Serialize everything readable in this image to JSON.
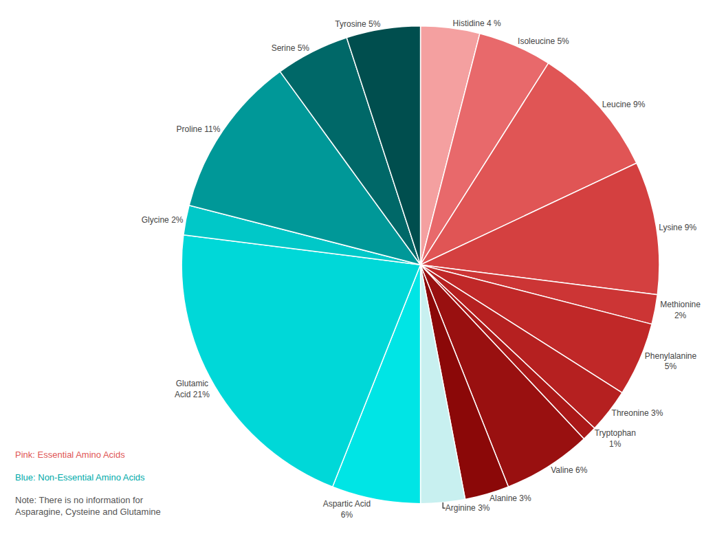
{
  "chart_data": {
    "type": "pie",
    "categories": [
      "Histidine 4 %",
      "Isoleucine 5%",
      "Leucine 9%",
      "Lysine 9%",
      "Methionine\n2%",
      "Phenylalanine\n5%",
      "Threonine 3%",
      "Tryptophan\n1%",
      "Valine 6%",
      "Alanine 3%",
      "Arginine 3%",
      "Aspartic Acid\n6%",
      "Glutamic\nAcid 21%",
      "Glycine 2%",
      "Proline 11%",
      "Serine 5%",
      "Tyrosine 5%"
    ],
    "values": [
      4,
      5,
      9,
      9,
      2,
      5,
      3,
      1,
      6,
      3,
      3,
      6,
      21,
      2,
      11,
      5,
      5
    ],
    "colors": [
      "#F4A0A0",
      "#E8696B",
      "#E05555",
      "#D44040",
      "#CC3535",
      "#C02828",
      "#B52020",
      "#AA1818",
      "#991010",
      "#8B0808",
      "#C8F0F0",
      "#00E5E5",
      "#00D8D8",
      "#00C8C8",
      "#009898",
      "#006868",
      "#004E4E"
    ],
    "data_labels": true,
    "annotations": [
      {
        "text": "Pink: Essential Amino Acids",
        "color": "#E05555"
      },
      {
        "text": "Blue: Non-Essential Amino Acids",
        "color": "#00AAAA"
      },
      {
        "text": "Note: There is no information for\nAsparagine, Cysteine and Glutamine",
        "color": "#555555"
      }
    ]
  }
}
